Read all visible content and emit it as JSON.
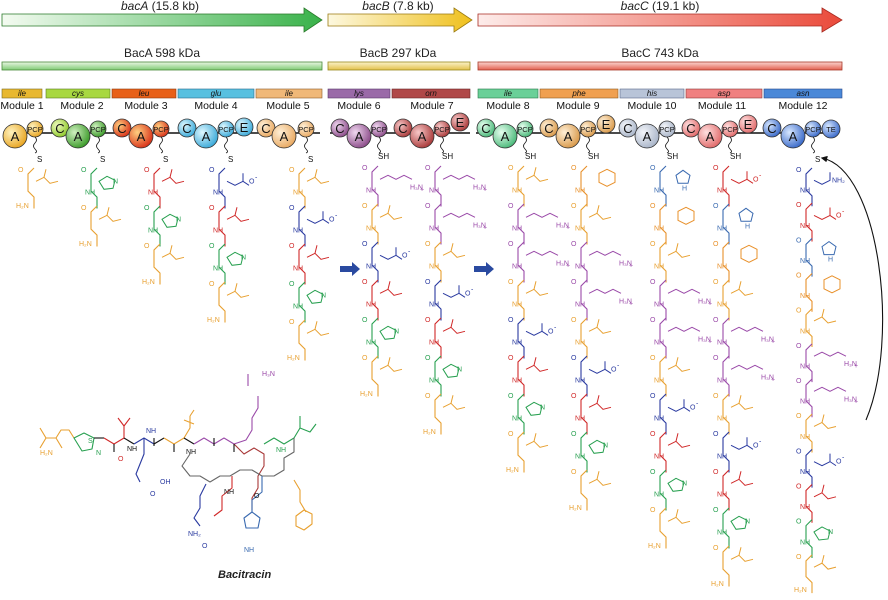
{
  "genes": [
    {
      "name": "bacA",
      "size": "(15.8 kb)",
      "color": "#48b848"
    },
    {
      "name": "bacB",
      "size": "(7.8 kb)",
      "color": "#e8c020"
    },
    {
      "name": "bacC",
      "size": "(19.1 kb)",
      "color": "#e84838"
    }
  ],
  "proteins": [
    {
      "label": "BacA 598 kDa"
    },
    {
      "label": "BacB 297 kDa"
    },
    {
      "label": "BacC 743 kDa"
    }
  ],
  "substrates": [
    "ile",
    "cys",
    "leu",
    "glu",
    "ile",
    "lys",
    "orn",
    "ile",
    "phe",
    "his",
    "asp",
    "asn"
  ],
  "modules": [
    "Module 1",
    "Module 2",
    "Module 3",
    "Module 4",
    "Module 5",
    "Module 6",
    "Module 7",
    "Module 8",
    "Module 9",
    "Module 10",
    "Module 11",
    "Module 12"
  ],
  "domains": {
    "A": "A",
    "C": "C",
    "E": "E",
    "PCP": "PCP",
    "TE": "TE",
    "SH": "SH",
    "S": "S"
  },
  "product": "Bacitracin",
  "chem": {
    "N": "N",
    "NH": "NH",
    "O": "O",
    "OH": "OH",
    "S": "S",
    "H2N": "H₂N",
    "H3N": "H₃N",
    "NH2": "NH₂",
    "minus": "-",
    "plus": "+",
    "H": "H"
  },
  "colors": {
    "ile": "#e8a030",
    "cys": "#28a050",
    "leu": "#d02828",
    "glu": "#2a3aa0",
    "lys": "#9a4aa8",
    "orn": "#9a4aa8",
    "phe": "#e8902a",
    "his": "#3a6ab0",
    "asp": "#d02828",
    "asn": "#2a3aa0"
  }
}
